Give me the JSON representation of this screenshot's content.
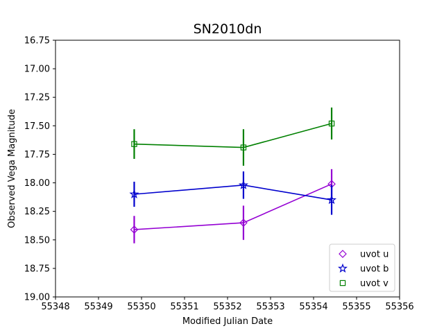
{
  "chart_data": {
    "type": "line",
    "title": "SN2010dn",
    "xlabel": "Modified Julian Date",
    "ylabel": "Observed Vega Magnitude",
    "xlim": [
      55348,
      55356
    ],
    "ylim": [
      16.75,
      19.0
    ],
    "y_inverted": true,
    "grid": false,
    "legend_position": "lower-right",
    "x_ticks": [
      "55348",
      "55349",
      "55350",
      "55351",
      "55352",
      "55353",
      "55354",
      "55355",
      "55356"
    ],
    "y_ticks": [
      "16.75",
      "17.00",
      "17.25",
      "17.50",
      "17.75",
      "18.00",
      "18.25",
      "18.50",
      "18.75",
      "19.00"
    ],
    "series": [
      {
        "name": "uvot u",
        "marker": "diamond",
        "color": "#9400d3",
        "x": [
          55349.83,
          55352.37,
          55354.42
        ],
        "y": [
          18.41,
          18.35,
          18.01
        ],
        "err": [
          0.12,
          0.15,
          0.13
        ]
      },
      {
        "name": "uvot b",
        "marker": "star",
        "color": "#0000cd",
        "x": [
          55349.83,
          55352.37,
          55354.42
        ],
        "y": [
          18.1,
          18.02,
          18.15
        ],
        "err": [
          0.11,
          0.12,
          0.13
        ]
      },
      {
        "name": "uvot v",
        "marker": "square",
        "color": "#008000",
        "x": [
          55349.83,
          55352.37,
          55354.42
        ],
        "y": [
          17.66,
          17.69,
          17.48
        ],
        "err": [
          0.13,
          0.16,
          0.14
        ]
      }
    ]
  }
}
